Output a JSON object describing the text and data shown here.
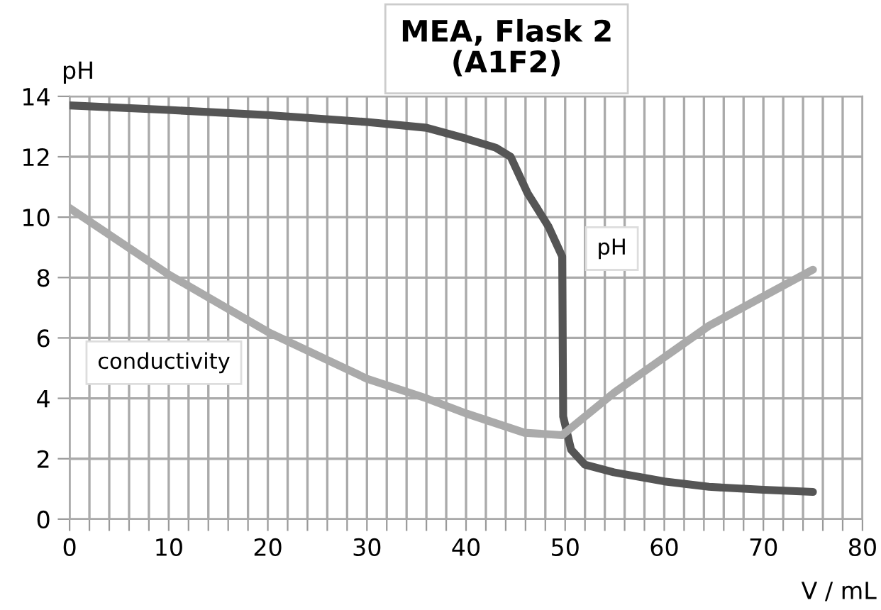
{
  "chart_data": {
    "type": "line",
    "title": "MEA, Flask 2\n(A1F2)",
    "ylabel": "pH",
    "xlabel": "V / mL",
    "xlim": [
      0,
      80
    ],
    "ylim": [
      0,
      14
    ],
    "xticks": [
      0,
      {
        "value": 2,
        "label": null
      },
      {
        "value": 4,
        "label": null
      },
      {
        "value": 6,
        "label": null
      },
      {
        "value": 8,
        "label": null
      },
      10,
      {
        "value": 12,
        "label": null
      },
      {
        "value": 14,
        "label": null
      },
      {
        "value": 16,
        "label": null
      },
      {
        "value": 18,
        "label": null
      },
      20,
      {
        "value": 22,
        "label": null
      },
      {
        "value": 24,
        "label": null
      },
      {
        "value": 26,
        "label": null
      },
      {
        "value": 28,
        "label": null
      },
      30,
      {
        "value": 32,
        "label": null
      },
      {
        "value": 34,
        "label": null
      },
      {
        "value": 36,
        "label": null
      },
      {
        "value": 38,
        "label": null
      },
      40,
      {
        "value": 42,
        "label": null
      },
      {
        "value": 44,
        "label": null
      },
      {
        "value": 46,
        "label": null
      },
      {
        "value": 48,
        "label": null
      },
      50,
      {
        "value": 52,
        "label": null
      },
      {
        "value": 54,
        "label": null
      },
      {
        "value": 56,
        "label": null
      },
      {
        "value": 58,
        "label": null
      },
      60,
      {
        "value": 62,
        "label": null
      },
      {
        "value": 64,
        "label": null
      },
      {
        "value": 66,
        "label": null
      },
      {
        "value": 68,
        "label": null
      },
      70,
      {
        "value": 72,
        "label": null
      },
      {
        "value": 74,
        "label": null
      },
      {
        "value": 76,
        "label": null
      },
      {
        "value": 78,
        "label": null
      },
      80
    ],
    "yticks": [
      0,
      2,
      4,
      6,
      8,
      10,
      12,
      14
    ],
    "grid": true,
    "marker": "none",
    "line_style": "solid",
    "series": [
      {
        "name": "pH",
        "color": "#555555",
        "x": [
          0,
          10,
          20,
          30,
          36,
          40,
          43,
          44.5,
          46.2,
          48.3,
          49.7,
          49.8,
          50.6,
          52,
          54.9,
          60,
          64.5,
          70,
          75
        ],
        "values": [
          13.7,
          13.55,
          13.38,
          13.15,
          12.96,
          12.6,
          12.3,
          12.0,
          10.8,
          9.7,
          8.7,
          3.4,
          2.3,
          1.8,
          1.55,
          1.25,
          1.07,
          0.97,
          0.9
        ]
      },
      {
        "name": "conductivity",
        "color": "#aaaaaa",
        "x": [
          0,
          10,
          20,
          30,
          36,
          40,
          45.9,
          49.7,
          55,
          64.5,
          75
        ],
        "values": [
          10.3,
          8.1,
          6.2,
          4.65,
          4.0,
          3.5,
          2.86,
          2.78,
          4.2,
          6.4,
          8.26
        ]
      }
    ]
  }
}
